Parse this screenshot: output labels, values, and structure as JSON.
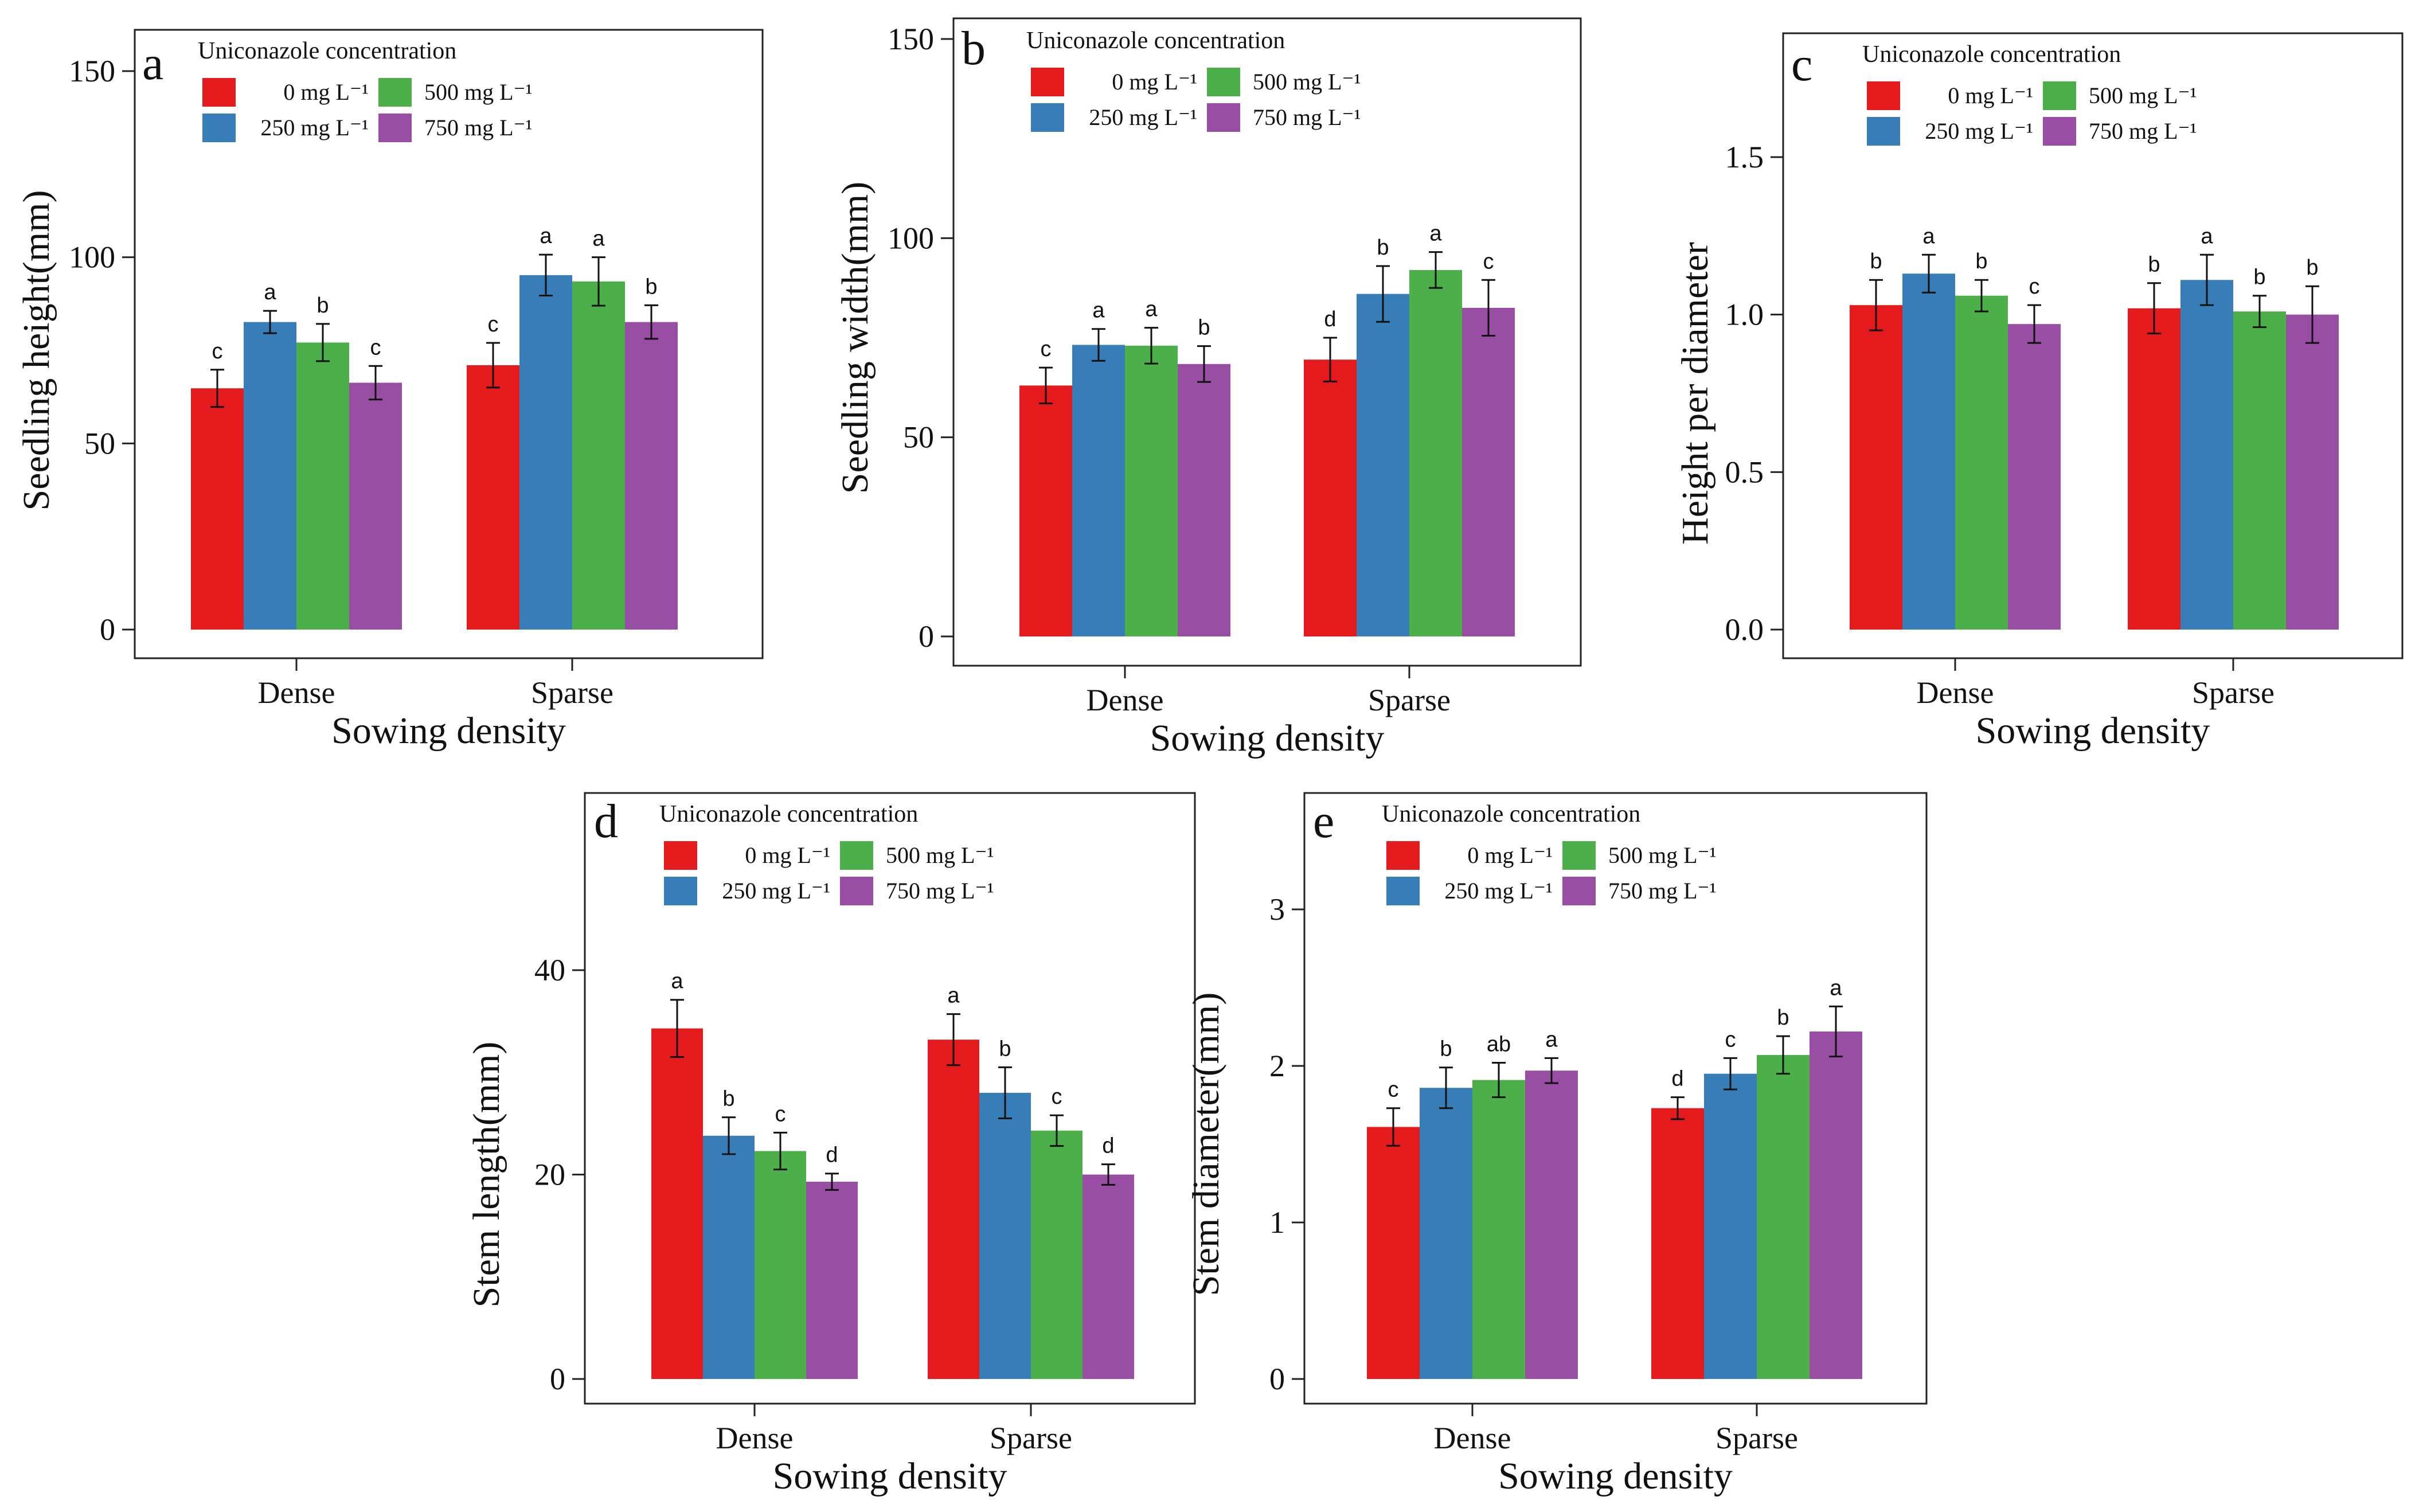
{
  "figure": {
    "colors": {
      "0": "#e41a1c",
      "250": "#377eb8",
      "500": "#4daf4a",
      "750": "#984ea3"
    }
  },
  "chart_data": [
    {
      "panel": "a",
      "type": "bar",
      "title": "",
      "xlabel": "Sowing density",
      "ylabel": "Seedling height(mm)",
      "ylim": [
        0,
        158
      ],
      "yticks": [
        0,
        50,
        100,
        150
      ],
      "categories": [
        "Dense",
        "Sparse"
      ],
      "legend_title": "Uniconazole concentration",
      "series": [
        {
          "name": "0 mg L⁻¹",
          "values": [
            64.8,
            71.0
          ],
          "err": [
            5.0,
            6.0
          ],
          "letters": [
            "c",
            "c"
          ]
        },
        {
          "name": "250 mg L⁻¹",
          "values": [
            82.6,
            95.2
          ],
          "err": [
            3.0,
            5.5
          ],
          "letters": [
            "a",
            "a"
          ]
        },
        {
          "name": "500 mg L⁻¹",
          "values": [
            77.1,
            93.5
          ],
          "err": [
            5.0,
            6.5
          ],
          "letters": [
            "b",
            "a"
          ]
        },
        {
          "name": "750 mg L⁻¹",
          "values": [
            66.3,
            82.6
          ],
          "err": [
            4.5,
            4.5
          ],
          "letters": [
            "c",
            "b"
          ]
        }
      ]
    },
    {
      "panel": "b",
      "type": "bar",
      "title": "",
      "xlabel": "Sowing density",
      "ylabel": "Seedling width(mm)",
      "ylim": [
        0,
        155
      ],
      "yticks": [
        0,
        50,
        100,
        150
      ],
      "categories": [
        "Dense",
        "Sparse"
      ],
      "legend_title": "Uniconazole concentration",
      "series": [
        {
          "name": "0 mg L⁻¹",
          "values": [
            63.0,
            69.5
          ],
          "err": [
            4.5,
            5.5
          ],
          "letters": [
            "c",
            "d"
          ]
        },
        {
          "name": "250 mg L⁻¹",
          "values": [
            73.2,
            86.0
          ],
          "err": [
            4.0,
            7.0
          ],
          "letters": [
            "a",
            "b"
          ]
        },
        {
          "name": "500 mg L⁻¹",
          "values": [
            73.0,
            92.0
          ],
          "err": [
            4.5,
            4.5
          ],
          "letters": [
            "a",
            "a"
          ]
        },
        {
          "name": "750 mg L⁻¹",
          "values": [
            68.4,
            82.5
          ],
          "err": [
            4.5,
            7.0
          ],
          "letters": [
            "b",
            "c"
          ]
        }
      ]
    },
    {
      "panel": "c",
      "type": "bar",
      "title": "",
      "xlabel": "Sowing density",
      "ylabel": "Height per diameter",
      "ylim": [
        0,
        1.9
      ],
      "yticks": [
        "0.0",
        "0.5",
        "1.0",
        "1.5"
      ],
      "categories": [
        "Dense",
        "Sparse"
      ],
      "legend_title": "Uniconazole concentration",
      "series": [
        {
          "name": "0 mg L⁻¹",
          "values": [
            1.03,
            1.02
          ],
          "err": [
            0.08,
            0.08
          ],
          "letters": [
            "b",
            "b"
          ]
        },
        {
          "name": "250 mg L⁻¹",
          "values": [
            1.13,
            1.11
          ],
          "err": [
            0.06,
            0.08
          ],
          "letters": [
            "a",
            "a"
          ]
        },
        {
          "name": "500 mg L⁻¹",
          "values": [
            1.06,
            1.01
          ],
          "err": [
            0.05,
            0.05
          ],
          "letters": [
            "b",
            "b"
          ]
        },
        {
          "name": "750 mg L⁻¹",
          "values": [
            0.97,
            1.0
          ],
          "err": [
            0.06,
            0.09
          ],
          "letters": [
            "c",
            "b"
          ]
        }
      ]
    },
    {
      "panel": "d",
      "type": "bar",
      "title": "",
      "xlabel": "Sowing density",
      "ylabel": "Stem length(mm)",
      "ylim": [
        0,
        57
      ],
      "yticks": [
        0,
        20,
        40
      ],
      "categories": [
        "Dense",
        "Sparse"
      ],
      "legend_title": "Uniconazole concentration",
      "series": [
        {
          "name": "0 mg L⁻¹",
          "values": [
            34.3,
            33.2
          ],
          "err": [
            2.8,
            2.5
          ],
          "letters": [
            "a",
            "a"
          ]
        },
        {
          "name": "250 mg L⁻¹",
          "values": [
            23.8,
            28.0
          ],
          "err": [
            1.8,
            2.5
          ],
          "letters": [
            "b",
            "b"
          ]
        },
        {
          "name": "500 mg L⁻¹",
          "values": [
            22.3,
            24.3
          ],
          "err": [
            1.8,
            1.5
          ],
          "letters": [
            "c",
            "c"
          ]
        },
        {
          "name": "750 mg L⁻¹",
          "values": [
            19.3,
            20.0
          ],
          "err": [
            0.8,
            1.0
          ],
          "letters": [
            "d",
            "d"
          ]
        }
      ]
    },
    {
      "panel": "e",
      "type": "bar",
      "title": "",
      "xlabel": "Sowing density",
      "ylabel": "Stem diameter(mm)",
      "ylim": [
        0,
        3.7
      ],
      "yticks": [
        0,
        1,
        2,
        3
      ],
      "categories": [
        "Dense",
        "Sparse"
      ],
      "legend_title": "Uniconazole concentration",
      "series": [
        {
          "name": "0 mg L⁻¹",
          "values": [
            1.61,
            1.73
          ],
          "err": [
            0.12,
            0.07
          ],
          "letters": [
            "c",
            "d"
          ]
        },
        {
          "name": "250 mg L⁻¹",
          "values": [
            1.86,
            1.95
          ],
          "err": [
            0.13,
            0.1
          ],
          "letters": [
            "b",
            "c"
          ]
        },
        {
          "name": "500 mg L⁻¹",
          "values": [
            1.91,
            2.07
          ],
          "err": [
            0.11,
            0.12
          ],
          "letters": [
            "ab",
            "b"
          ]
        },
        {
          "name": "750 mg L⁻¹",
          "values": [
            1.97,
            2.22
          ],
          "err": [
            0.08,
            0.16
          ],
          "letters": [
            "a",
            "a"
          ]
        }
      ]
    }
  ]
}
